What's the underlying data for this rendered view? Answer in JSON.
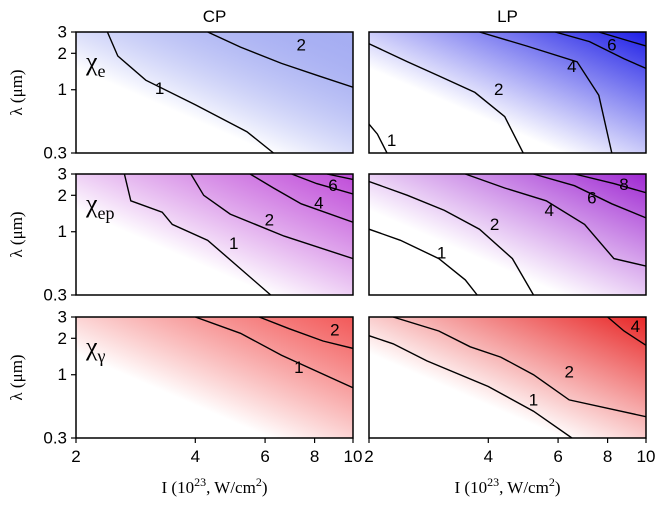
{
  "chart_data": [
    {
      "type": "contour",
      "column_title": "CP",
      "panel_label": {
        "symbol": "χ",
        "subscript": "e"
      },
      "xlabel": "I (10^23, W/cm^2)",
      "ylabel": "λ (μm)",
      "x_scale": "log",
      "y_scale": "log",
      "xlim": [
        2,
        10
      ],
      "ylim": [
        0.3,
        3
      ],
      "x_ticks": [
        "2",
        "4",
        "6",
        "8",
        "10"
      ],
      "y_ticks": [
        "0.3",
        "1",
        "2",
        "3"
      ],
      "colormap": {
        "low": "#ffffff",
        "high": "#4c5ce6"
      },
      "field_max_corner": 0.5,
      "contours": [
        {
          "level": "1",
          "points": [
            [
              2.4,
              3
            ],
            [
              2.55,
              1.9
            ],
            [
              3.0,
              1.2
            ],
            [
              4.0,
              0.75
            ],
            [
              5.4,
              0.45
            ],
            [
              6.3,
              0.3
            ]
          ],
          "label_at": [
            3.25,
            1.02
          ]
        },
        {
          "level": "2",
          "points": [
            [
              4.3,
              3
            ],
            [
              5.2,
              2.25
            ],
            [
              6.6,
              1.65
            ],
            [
              8.2,
              1.3
            ],
            [
              10,
              1.05
            ]
          ],
          "label_at": [
            7.4,
            2.35
          ]
        }
      ]
    },
    {
      "type": "contour",
      "column_title": "LP",
      "panel_label": null,
      "xlabel": "I (10^23, W/cm^2)",
      "ylabel": "λ (μm)",
      "x_scale": "log",
      "y_scale": "log",
      "xlim": [
        2,
        10
      ],
      "ylim": [
        0.3,
        3
      ],
      "x_ticks": [
        "2",
        "4",
        "6",
        "8",
        "10"
      ],
      "y_ticks": [
        "0.3",
        "1",
        "2",
        "3"
      ],
      "colormap": {
        "low": "#ffffff",
        "high": "#1e1ee6"
      },
      "field_max_corner": 1.0,
      "contours": [
        {
          "level": "1",
          "points": [
            [
              2.0,
              0.52
            ],
            [
              2.1,
              0.43
            ],
            [
              2.22,
              0.3
            ]
          ],
          "label_at": [
            2.28,
            0.38
          ]
        },
        {
          "level": "2",
          "points": [
            [
              2.0,
              2.4
            ],
            [
              2.5,
              1.7
            ],
            [
              3.0,
              1.3
            ],
            [
              3.7,
              0.95
            ],
            [
              4.4,
              0.6
            ],
            [
              4.9,
              0.3
            ]
          ],
          "label_at": [
            4.25,
            1.0
          ]
        },
        {
          "level": "4",
          "points": [
            [
              3.8,
              3
            ],
            [
              5.0,
              2.3
            ],
            [
              6.7,
              1.7
            ],
            [
              7.6,
              0.9
            ],
            [
              8.2,
              0.3
            ]
          ],
          "label_at": [
            6.5,
            1.55
          ]
        },
        {
          "level": "6",
          "points": [
            [
              5.9,
              3
            ],
            [
              7.2,
              2.5
            ],
            [
              8.8,
              1.8
            ],
            [
              10,
              1.5
            ]
          ],
          "label_at": [
            8.2,
            2.35
          ]
        },
        {
          "level": "8",
          "points": [
            [
              7.6,
              3
            ],
            [
              8.8,
              2.6
            ],
            [
              10,
              2.3
            ]
          ],
          "label_at": null
        }
      ]
    },
    {
      "type": "contour",
      "column_title": "",
      "panel_label": {
        "symbol": "χ",
        "subscript": "ep"
      },
      "xlabel": "I (10^23, W/cm^2)",
      "ylabel": "λ (μm)",
      "x_scale": "log",
      "y_scale": "log",
      "xlim": [
        2,
        10
      ],
      "ylim": [
        0.3,
        3
      ],
      "x_ticks": [
        "2",
        "4",
        "6",
        "8",
        "10"
      ],
      "y_ticks": [
        "0.3",
        "1",
        "2",
        "3"
      ],
      "colormap": {
        "low": "#ffffff",
        "high": "#b42dd2"
      },
      "field_max_corner": 0.85,
      "contours": [
        {
          "level": "1",
          "points": [
            [
              2.65,
              3
            ],
            [
              2.75,
              1.8
            ],
            [
              3.3,
              1.45
            ],
            [
              3.5,
              1.15
            ],
            [
              4.3,
              0.85
            ],
            [
              6.2,
              0.3
            ]
          ],
          "label_at": [
            5.0,
            0.8
          ]
        },
        {
          "level": "2",
          "points": [
            [
              3.9,
              3
            ],
            [
              4.2,
              2.0
            ],
            [
              4.9,
              1.4
            ],
            [
              6.7,
              0.92
            ],
            [
              10,
              0.6
            ]
          ],
          "label_at": [
            6.15,
            1.25
          ]
        },
        {
          "level": "4",
          "points": [
            [
              5.5,
              3
            ],
            [
              6.3,
              2.3
            ],
            [
              7.4,
              1.7
            ],
            [
              10,
              1.2
            ]
          ],
          "label_at": [
            8.2,
            1.72
          ]
        },
        {
          "level": "6",
          "points": [
            [
              7.0,
              3
            ],
            [
              8.1,
              2.5
            ],
            [
              10,
              2.05
            ]
          ],
          "label_at": [
            8.9,
            2.4
          ]
        },
        {
          "level": "8",
          "points": [
            [
              8.6,
              3
            ],
            [
              10,
              2.7
            ]
          ],
          "label_at": null
        }
      ]
    },
    {
      "type": "contour",
      "column_title": "",
      "panel_label": null,
      "xlabel": "I (10^23, W/cm^2)",
      "ylabel": "λ (μm)",
      "x_scale": "log",
      "y_scale": "log",
      "xlim": [
        2,
        10
      ],
      "ylim": [
        0.3,
        3
      ],
      "x_ticks": [
        "2",
        "4",
        "6",
        "8",
        "10"
      ],
      "y_ticks": [
        "0.3",
        "1",
        "2",
        "3"
      ],
      "colormap": {
        "low": "#ffffff",
        "high": "#9f28d2"
      },
      "field_max_corner": 1.0,
      "contours": [
        {
          "level": "1",
          "points": [
            [
              2.0,
              1.05
            ],
            [
              2.4,
              0.85
            ],
            [
              3.0,
              0.6
            ],
            [
              3.5,
              0.4
            ],
            [
              3.75,
              0.3
            ]
          ],
          "label_at": [
            3.05,
            0.67
          ]
        },
        {
          "level": "2",
          "points": [
            [
              2.0,
              2.6
            ],
            [
              2.5,
              2.0
            ],
            [
              3.1,
              1.5
            ],
            [
              3.8,
              1.05
            ],
            [
              4.6,
              0.6
            ],
            [
              5.2,
              0.3
            ]
          ],
          "label_at": [
            4.15,
            1.15
          ]
        },
        {
          "level": "4",
          "points": [
            [
              3.5,
              3
            ],
            [
              4.4,
              2.3
            ],
            [
              5.6,
              1.8
            ],
            [
              7.0,
              1.15
            ],
            [
              8.3,
              0.6
            ],
            [
              10,
              0.52
            ]
          ],
          "label_at": [
            5.7,
            1.5
          ]
        },
        {
          "level": "6",
          "points": [
            [
              5.2,
              3
            ],
            [
              6.6,
              2.4
            ],
            [
              8.2,
              1.7
            ],
            [
              10,
              1.3
            ]
          ],
          "label_at": [
            7.3,
            1.9
          ]
        },
        {
          "level": "8",
          "points": [
            [
              6.6,
              3
            ],
            [
              8.3,
              2.5
            ],
            [
              10,
              2.1
            ]
          ],
          "label_at": [
            8.8,
            2.45
          ]
        }
      ]
    },
    {
      "type": "contour",
      "column_title": "",
      "panel_label": {
        "symbol": "χ",
        "subscript": "γ"
      },
      "xlabel": "I (10^23, W/cm^2)",
      "ylabel": "λ (μm)",
      "x_scale": "log",
      "y_scale": "log",
      "xlim": [
        2,
        10
      ],
      "ylim": [
        0.3,
        3
      ],
      "x_ticks": [
        "2",
        "4",
        "6",
        "8",
        "10"
      ],
      "y_ticks": [
        "0.3",
        "1",
        "2",
        "3"
      ],
      "colormap": {
        "low": "#ffffff",
        "high": "#f03c3c"
      },
      "field_max_corner": 0.85,
      "contours": [
        {
          "level": "1",
          "points": [
            [
              4.0,
              3
            ],
            [
              5.2,
              2.2
            ],
            [
              6.6,
              1.45
            ],
            [
              10,
              0.78
            ]
          ],
          "label_at": [
            7.3,
            1.15
          ]
        },
        {
          "level": "2",
          "points": [
            [
              5.8,
              3
            ],
            [
              6.9,
              2.4
            ],
            [
              8.4,
              1.9
            ],
            [
              10,
              1.65
            ]
          ],
          "label_at": [
            9.0,
            2.35
          ]
        }
      ]
    },
    {
      "type": "contour",
      "column_title": "",
      "panel_label": null,
      "xlabel": "I (10^23, W/cm^2)",
      "ylabel": "λ (μm)",
      "x_scale": "log",
      "y_scale": "log",
      "xlim": [
        2,
        10
      ],
      "ylim": [
        0.3,
        3
      ],
      "x_ticks": [
        "2",
        "4",
        "6",
        "8",
        "10"
      ],
      "y_ticks": [
        "0.3",
        "1",
        "2",
        "3"
      ],
      "colormap": {
        "low": "#ffffff",
        "high": "#e82626"
      },
      "field_max_corner": 1.0,
      "contours": [
        {
          "level": "1",
          "points": [
            [
              2.0,
              2.1
            ],
            [
              2.3,
              1.8
            ],
            [
              2.8,
              1.3
            ],
            [
              4.0,
              0.8
            ],
            [
              5.2,
              0.5
            ],
            [
              6.5,
              0.3
            ]
          ],
          "label_at": [
            5.2,
            0.62
          ]
        },
        {
          "level": "2",
          "points": [
            [
              2.3,
              3
            ],
            [
              3.0,
              2.3
            ],
            [
              3.6,
              1.7
            ],
            [
              4.3,
              1.4
            ],
            [
              5.2,
              1.0
            ],
            [
              6.4,
              0.62
            ],
            [
              10,
              0.45
            ]
          ],
          "label_at": [
            6.4,
            1.05
          ]
        },
        {
          "level": "4",
          "points": [
            [
              8.0,
              3
            ],
            [
              8.8,
              2.3
            ],
            [
              10,
              1.75
            ]
          ],
          "label_at": [
            9.4,
            2.5
          ]
        }
      ]
    }
  ]
}
